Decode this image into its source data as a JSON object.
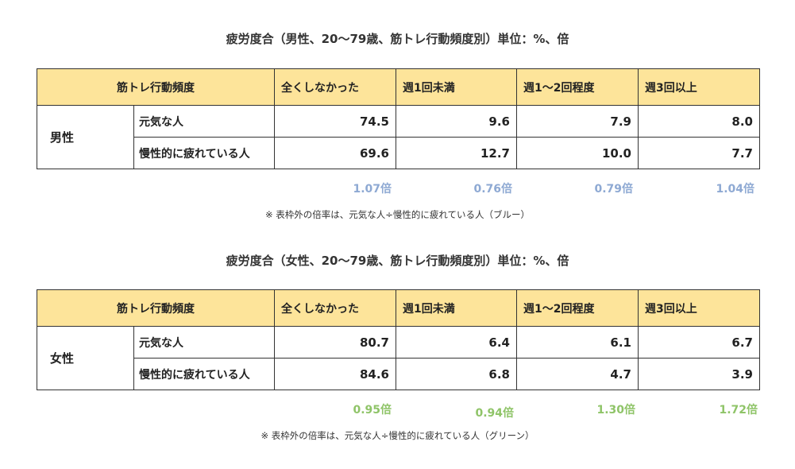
{
  "tables": [
    {
      "title": "疲労度合（男性、20～79歳、筋トレ行動頻度別）単位：%、倍",
      "header": {
        "freq_label": "筋トレ行動頻度",
        "columns": [
          "全くしなかった",
          "週1回未満",
          "週1～2回程度",
          "週3回以上"
        ]
      },
      "gender": "男性",
      "rows": [
        {
          "label": "元気な人",
          "values": [
            "74.5",
            "9.6",
            "7.9",
            "8.0"
          ]
        },
        {
          "label": "慢性的に疲れている人",
          "values": [
            "69.6",
            "12.7",
            "10.0",
            "7.7"
          ]
        }
      ],
      "ratios": [
        "1.07倍",
        "0.76倍",
        "0.79倍",
        "1.04倍"
      ],
      "ratio_color": "#8ea9d3",
      "note": "※ 表枠外の倍率は、元気な人÷慢性的に疲れている人（ブルー）"
    },
    {
      "title": "疲労度合（女性、20～79歳、筋トレ行動頻度別）単位：%、倍",
      "header": {
        "freq_label": "筋トレ行動頻度",
        "columns": [
          "全くしなかった",
          "週1回未満",
          "週1～2回程度",
          "週3回以上"
        ]
      },
      "gender": "女性",
      "rows": [
        {
          "label": "元気な人",
          "values": [
            "80.7",
            "6.4",
            "6.1",
            "6.7"
          ]
        },
        {
          "label": "慢性的に疲れている人",
          "values": [
            "84.6",
            "6.8",
            "4.7",
            "3.9"
          ]
        }
      ],
      "ratios": [
        "0.95倍",
        "0.94倍",
        "1.30倍",
        "1.72倍"
      ],
      "ratio_color": "#8fc468",
      "note": "※ 表枠外の倍率は、元気な人÷慢性的に疲れている人（グリーン）"
    }
  ],
  "colors": {
    "header_bg": "#fde49a",
    "border": "#333333"
  }
}
